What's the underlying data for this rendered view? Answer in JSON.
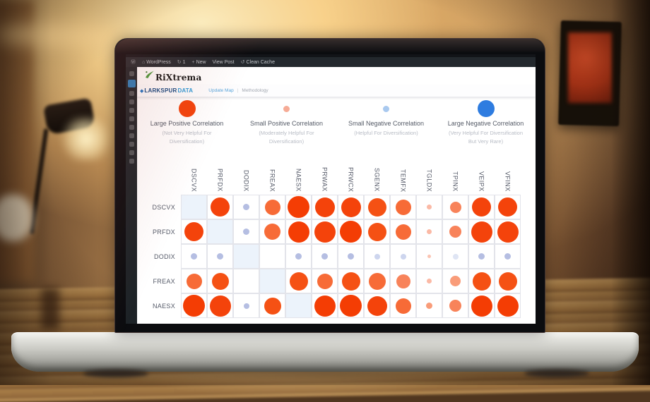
{
  "colors": {
    "accent_red": "#f4430b",
    "accent_blue": "#2e7ce0",
    "small_positive_pink": "#f6ab96",
    "small_negative_blue": "#a9c9ef",
    "diagonal_cell": "#ecf3fb"
  },
  "admin_bar": {
    "items": [
      {
        "icon": "wordpress-logo-icon",
        "glyph": "Ⓦ",
        "label": ""
      },
      {
        "icon": "home-icon",
        "glyph": "⌂",
        "label": "WordPress"
      },
      {
        "icon": "updates-icon",
        "glyph": "↻",
        "label": "1"
      },
      {
        "icon": "plus-icon",
        "glyph": "+",
        "label": "New"
      },
      {
        "icon": "",
        "glyph": "",
        "label": "View Post"
      },
      {
        "icon": "clean-cache-icon",
        "glyph": "↺",
        "label": "Clean Cache"
      }
    ]
  },
  "branding": {
    "site_logo": "RiXtrema",
    "product_primary": "LARKSPUR",
    "product_secondary": "DATA",
    "nav_link_1": "Update Map",
    "nav_link_2": "Methodology"
  },
  "legend": [
    {
      "title": "Large Positive Correlation",
      "subtitle": "(Not Very Helpful For Diversification)",
      "color": "#f4430b",
      "size": 24
    },
    {
      "title": "Small Positive Correlation",
      "subtitle": "(Moderately Helpful For Diversification)",
      "color": "#f6ab96",
      "size": 9
    },
    {
      "title": "Small Negative Correlation",
      "subtitle": "(Helpful For Diversification)",
      "color": "#a9c9ef",
      "size": 9
    },
    {
      "title": "Large Negative Correlation",
      "subtitle": "(Very Helpful For Diversification But Very Rare)",
      "color": "#2e7ce0",
      "size": 24
    }
  ],
  "matrix": {
    "tickers": [
      "DSCVX",
      "PRFDX",
      "DODIX",
      "FREAX",
      "NAESX",
      "PRWAX",
      "PRWCX",
      "SGENX",
      "TEMFX",
      "TGLDX",
      "TPINX",
      "VEIPX",
      "VFINX"
    ],
    "rows": [
      {
        "label": "DSCVX",
        "cells": [
          "diag",
          {
            "s": 27,
            "c": "#f4430b"
          },
          {
            "s": 9,
            "c": "#b5bee2"
          },
          {
            "s": 22,
            "c": "#f76b37"
          },
          {
            "s": 31,
            "c": "#f43d04"
          },
          {
            "s": 28,
            "c": "#f4430b"
          },
          {
            "s": 28,
            "c": "#f4430b"
          },
          {
            "s": 26,
            "c": "#f55114"
          },
          {
            "s": 22,
            "c": "#f76b37"
          },
          {
            "s": 7,
            "c": "#fbb9a5"
          },
          {
            "s": 16,
            "c": "#f8835a"
          },
          {
            "s": 27,
            "c": "#f4430b"
          },
          {
            "s": 27,
            "c": "#f4430b"
          }
        ]
      },
      {
        "label": "PRFDX",
        "cells": [
          {
            "s": 27,
            "c": "#f4430b"
          },
          "diag",
          {
            "s": 9,
            "c": "#b5bee2"
          },
          {
            "s": 23,
            "c": "#f76b37"
          },
          {
            "s": 30,
            "c": "#f43d04"
          },
          {
            "s": 30,
            "c": "#f4430b"
          },
          {
            "s": 31,
            "c": "#f43d04"
          },
          {
            "s": 26,
            "c": "#f55114"
          },
          {
            "s": 22,
            "c": "#f76b37"
          },
          {
            "s": 7,
            "c": "#fbb9a5"
          },
          {
            "s": 17,
            "c": "#f8835a"
          },
          {
            "s": 30,
            "c": "#f4430b"
          },
          {
            "s": 30,
            "c": "#f4430b"
          }
        ]
      },
      {
        "label": "DODIX",
        "cells": [
          {
            "s": 9,
            "c": "#b5bee2"
          },
          {
            "s": 9,
            "c": "#b5bee2"
          },
          "diag",
          null,
          {
            "s": 9,
            "c": "#b5bee2"
          },
          {
            "s": 9,
            "c": "#b5bee2"
          },
          {
            "s": 9,
            "c": "#b5bee2"
          },
          {
            "s": 8,
            "c": "#cdd5ee"
          },
          {
            "s": 8,
            "c": "#cdd5ee"
          },
          {
            "s": 5,
            "c": "#fbc4b2"
          },
          {
            "s": 8,
            "c": "#dfe5f4"
          },
          {
            "s": 9,
            "c": "#b5bee2"
          },
          {
            "s": 9,
            "c": "#b5bee2"
          }
        ]
      },
      {
        "label": "FREAX",
        "cells": [
          {
            "s": 22,
            "c": "#f76b37"
          },
          {
            "s": 24,
            "c": "#f55114"
          },
          null,
          "diag",
          {
            "s": 26,
            "c": "#f55114"
          },
          {
            "s": 22,
            "c": "#f76b37"
          },
          {
            "s": 26,
            "c": "#f55114"
          },
          {
            "s": 24,
            "c": "#f76b37"
          },
          {
            "s": 20,
            "c": "#f8835a"
          },
          {
            "s": 7,
            "c": "#fbb9a5"
          },
          {
            "s": 15,
            "c": "#f99c79"
          },
          {
            "s": 26,
            "c": "#f55114"
          },
          {
            "s": 26,
            "c": "#f55114"
          }
        ]
      },
      {
        "label": "NAESX",
        "cells": [
          {
            "s": 31,
            "c": "#f43d04"
          },
          {
            "s": 30,
            "c": "#f4430b"
          },
          {
            "s": 8,
            "c": "#b5bee2"
          },
          {
            "s": 24,
            "c": "#f55114"
          },
          "diag",
          {
            "s": 30,
            "c": "#f43d04"
          },
          {
            "s": 31,
            "c": "#f43d04"
          },
          {
            "s": 28,
            "c": "#f4430b"
          },
          {
            "s": 22,
            "c": "#f76b37"
          },
          {
            "s": 9,
            "c": "#f99c79"
          },
          {
            "s": 17,
            "c": "#f8835a"
          },
          {
            "s": 30,
            "c": "#f43d04"
          },
          {
            "s": 30,
            "c": "#f43d04"
          }
        ]
      }
    ]
  }
}
